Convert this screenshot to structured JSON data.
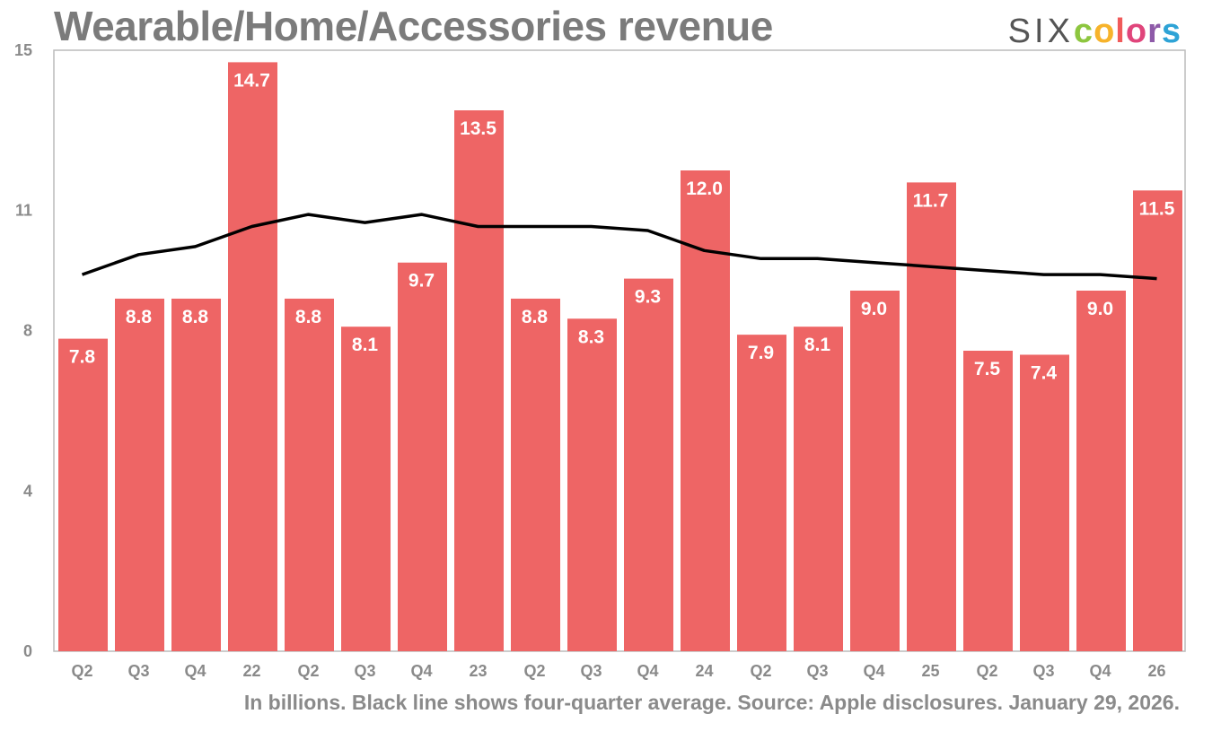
{
  "title": "Wearable/Home/Accessories revenue",
  "brand": {
    "prefix": "SIX",
    "letters": [
      "c",
      "o",
      "l",
      "o",
      "r",
      "s"
    ],
    "letter_colors": [
      "#8dc63f",
      "#f7b32b",
      "#f05a5a",
      "#e0457b",
      "#8e5aa8",
      "#2ea3d6"
    ]
  },
  "caption": "In billions. Black line shows four-quarter average. Source: Apple disclosures. January 29, 2026.",
  "colors": {
    "bar": "#ee6565",
    "line": "#000000",
    "frame": "#bbbbbb"
  },
  "chart_data": {
    "type": "bar",
    "title": "Wearable/Home/Accessories revenue",
    "categories": [
      "Q2",
      "Q3",
      "Q4",
      "22",
      "Q2",
      "Q3",
      "Q4",
      "23",
      "Q2",
      "Q3",
      "Q4",
      "24",
      "Q2",
      "Q3",
      "Q4",
      "25",
      "Q2",
      "Q3",
      "Q4",
      "26"
    ],
    "series": [
      {
        "values": [
          7.8,
          8.8,
          8.8,
          14.7,
          8.8,
          8.1,
          9.7,
          13.5,
          8.8,
          8.3,
          9.3,
          12.0,
          7.9,
          8.1,
          9.0,
          11.7,
          7.5,
          7.4,
          9.0,
          11.5
        ]
      }
    ],
    "data_labels": [
      "7.8",
      "8.8",
      "8.8",
      "14.7",
      "8.8",
      "8.1",
      "9.7",
      "13.5",
      "8.8",
      "8.3",
      "9.3",
      "12.0",
      "7.9",
      "8.1",
      "9.0",
      "11.7",
      "7.5",
      "7.4",
      "9.0",
      "11.5"
    ],
    "average_line": [
      9.4,
      9.9,
      10.1,
      10.6,
      10.9,
      10.7,
      10.9,
      10.6,
      10.6,
      10.6,
      10.5,
      10.0,
      9.8,
      9.8,
      9.7,
      9.6,
      9.5,
      9.4,
      9.4,
      9.3
    ],
    "y_ticks": [
      0,
      4,
      8,
      11,
      15
    ],
    "ylim": [
      0,
      15
    ],
    "grid": false,
    "xlabel": "",
    "ylabel": ""
  }
}
